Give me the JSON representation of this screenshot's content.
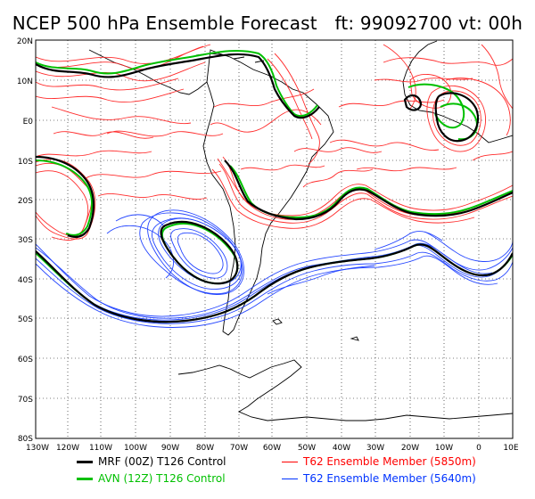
{
  "title": "NCEP 500 hPa Ensemble Forecast   ft: 99092700 vt: 00h",
  "lat_labels": [
    "20N",
    "10N",
    "E0",
    "10S",
    "20S",
    "30S",
    "40S",
    "50S",
    "60S",
    "70S",
    "80S"
  ],
  "lon_labels": [
    "130W",
    "120W",
    "110W",
    "100W",
    "90W",
    "80W",
    "70W",
    "60W",
    "50W",
    "40W",
    "30W",
    "20W",
    "10W",
    "0",
    "10E"
  ],
  "legend": [
    {
      "label": "MRF (00Z) T126 Control",
      "color": "#000000"
    },
    {
      "label": "AVN (12Z) T126 Control",
      "color": "#00c000"
    },
    {
      "label": "T62 Ensemble Member (5850m)",
      "color": "#ff0000"
    },
    {
      "label": "T62 Ensemble Member (5640m)",
      "color": "#0033ff"
    }
  ]
}
